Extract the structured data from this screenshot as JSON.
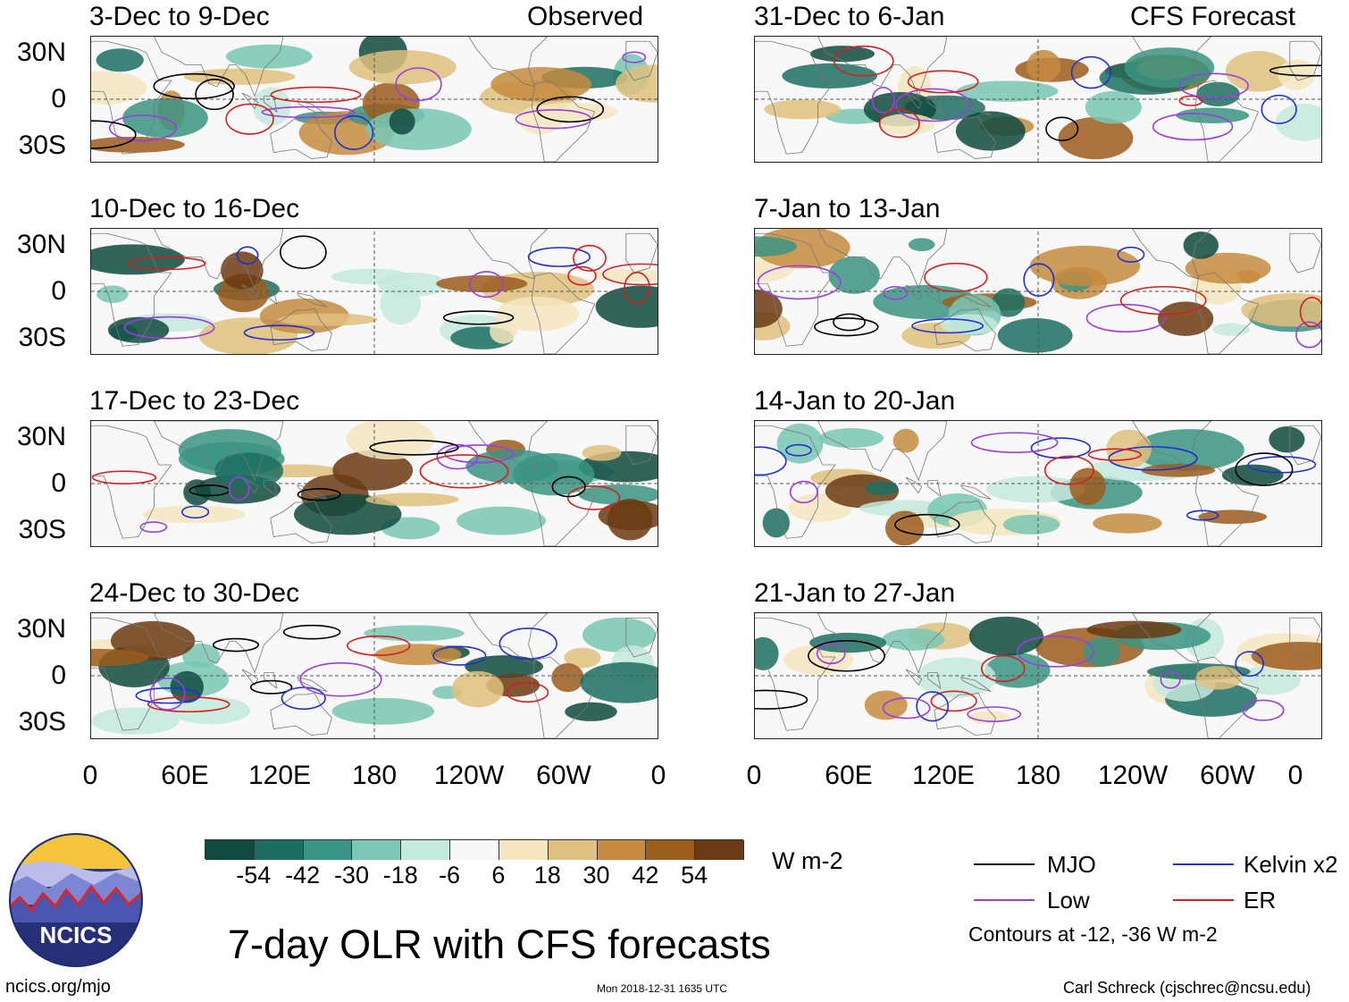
{
  "figure_title": "7-day OLR with CFS forecasts",
  "units": "W m-2",
  "observed_label": "Observed",
  "forecast_label": "CFS Forecast",
  "lat_labels": [
    "30N",
    "0",
    "30S"
  ],
  "lon_labels": [
    "0",
    "60E",
    "120E",
    "180",
    "120W",
    "60W",
    "0"
  ],
  "observed_panels": [
    {
      "title": "3-Dec to 9-Dec"
    },
    {
      "title": "10-Dec to 16-Dec"
    },
    {
      "title": "17-Dec to 23-Dec"
    },
    {
      "title": "24-Dec to 30-Dec"
    }
  ],
  "forecast_panels": [
    {
      "title": "31-Dec to 6-Jan"
    },
    {
      "title": "7-Jan to 13-Jan"
    },
    {
      "title": "14-Jan to 20-Jan"
    },
    {
      "title": "21-Jan to 27-Jan"
    }
  ],
  "colorbar": {
    "colors": [
      "#0f4a3e",
      "#1c6e60",
      "#3a9483",
      "#79c7b4",
      "#c4e9dd",
      "#f8f8f8",
      "#f5e6c0",
      "#dfc07e",
      "#c58b3e",
      "#9c5c1c",
      "#6b3a12"
    ],
    "ticks": [
      "-54",
      "-42",
      "-30",
      "-18",
      "-6",
      "6",
      "18",
      "30",
      "42",
      "54"
    ]
  },
  "legend": {
    "items": [
      {
        "label": "MJO",
        "color": "#000000"
      },
      {
        "label": "Kelvin x2",
        "color": "#1f2fd6"
      },
      {
        "label": "Low",
        "color": "#9a3ee0"
      },
      {
        "label": "ER",
        "color": "#d61f1f"
      }
    ],
    "contour_note": "Contours at -12, -36 W m-2"
  },
  "logo_text": "NCICS",
  "website": "ncics.org/mjo",
  "timestamp": "Mon 2018-12-31 1635 UTC",
  "credit": "Carl Schreck (cjschrec@ncsu.edu)"
}
